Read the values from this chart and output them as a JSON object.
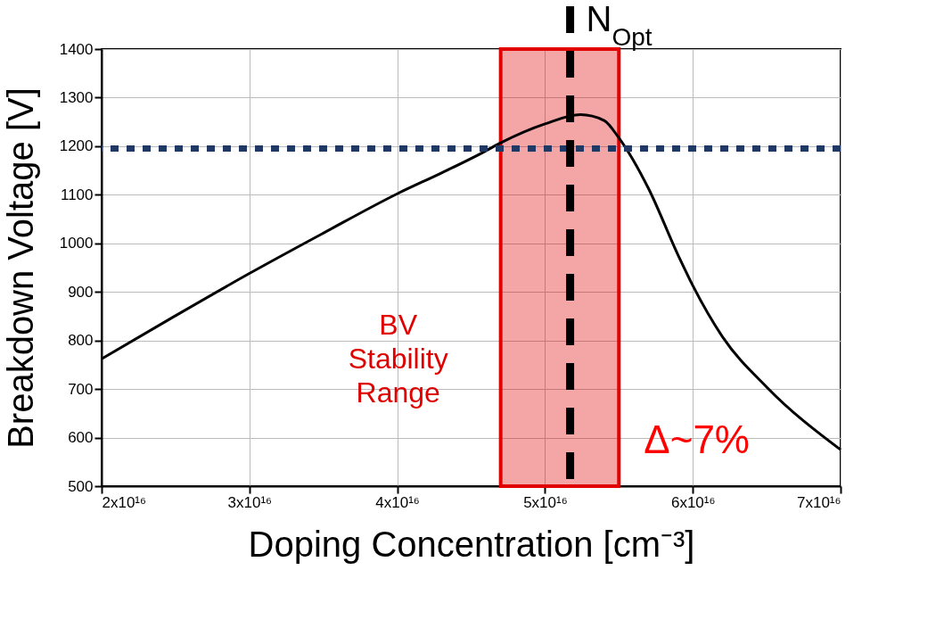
{
  "chart_data": {
    "type": "line",
    "xlabel": "Doping Concentration [cm⁻³]",
    "ylabel": "Breakdown Voltage [V]",
    "x": [
      2e+16,
      2.5e+16,
      3e+16,
      3.5e+16,
      4e+16,
      4.3e+16,
      4.56e+16,
      4.7e+16,
      5e+16,
      5.24e+16,
      5.4e+16,
      5.5e+16,
      5.7e+16,
      5.9e+16,
      6e+16,
      6.2e+16,
      6.5e+16,
      7e+16
    ],
    "series": [
      {
        "color": "#000000",
        "values": [
          762,
          851,
          938,
          1021,
          1102,
          1145,
          1184,
          1207,
          1246,
          1265,
          1253,
          1217,
          1113,
          976,
          913,
          808,
          704,
          575
        ]
      }
    ],
    "xlim": [
      2e+16,
      7e+16
    ],
    "xticks": [
      {
        "value": 2e+16,
        "label": "2x10¹⁶"
      },
      {
        "value": 3e+16,
        "label": "3x10¹⁶"
      },
      {
        "value": 4e+16,
        "label": "4x10¹⁶"
      },
      {
        "value": 5e+16,
        "label": "5x10¹⁶"
      },
      {
        "value": 6e+16,
        "label": "6x10¹⁶"
      },
      {
        "value": 7e+16,
        "label": "7x10¹⁶"
      }
    ],
    "ylim": [
      500,
      1400
    ],
    "yticks": [
      500,
      600,
      700,
      800,
      900,
      1000,
      1100,
      1200,
      1300,
      1400
    ],
    "grid": true,
    "marker": "none",
    "line_style": "solid",
    "ref_lines": [
      {
        "axis": "y",
        "value": 1195,
        "color": "#1f3864",
        "line_style": "dotted"
      },
      {
        "axis": "x",
        "value": 5.17e+16,
        "label": "N$_{Opt}$",
        "color": "#000000",
        "line_style": "dashed"
      }
    ],
    "bands": [
      {
        "axis": "x",
        "from": 4.7e+16,
        "to": 5.5e+16,
        "label": "BV\nStability\nRange",
        "color": "#e00000"
      }
    ],
    "annotations": [
      "Δ~7%"
    ]
  }
}
